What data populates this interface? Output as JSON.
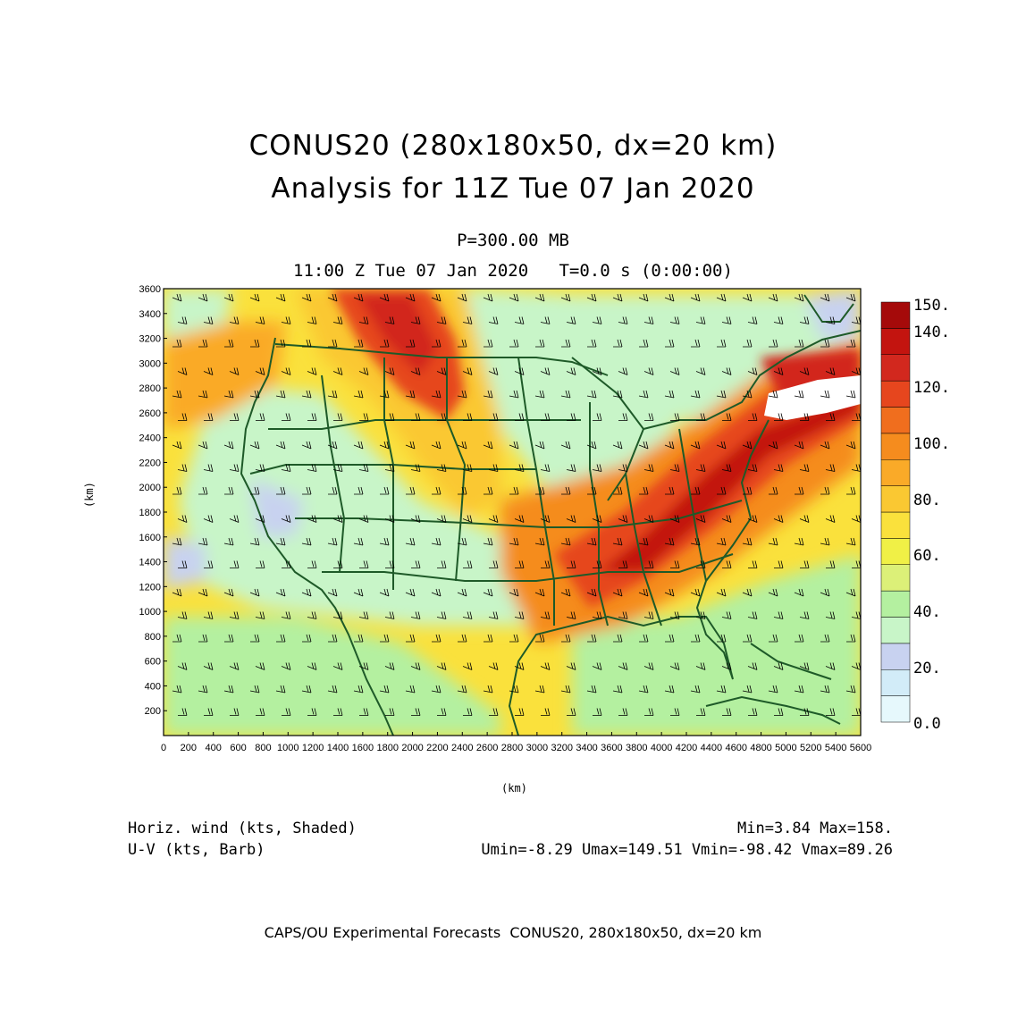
{
  "titles": {
    "line1": "CONUS20 (280x180x50, dx=20 km)",
    "line2": "Analysis for 11Z Tue 07 Jan 2020",
    "level": "P=300.00 MB",
    "time": "11:00 Z Tue 07 Jan 2020   T=0.0 s (0:00:00)"
  },
  "axes": {
    "xlabel": "(km)",
    "ylabel": "(km)",
    "xlim": [
      0,
      5600
    ],
    "ylim": [
      0,
      3600
    ],
    "xticks": [
      "0",
      "200",
      "400",
      "600",
      "800",
      "1000",
      "1200",
      "1400",
      "1600",
      "1800",
      "2000",
      "2200",
      "2400",
      "2600",
      "2800",
      "3000",
      "3200",
      "3400",
      "3600",
      "3800",
      "4000",
      "4200",
      "4400",
      "4600",
      "4800",
      "5000",
      "5200",
      "5400",
      "5600"
    ],
    "yticks": [
      "3600",
      "3400",
      "3200",
      "3000",
      "2800",
      "2600",
      "2400",
      "2200",
      "2000",
      "1800",
      "1600",
      "1400",
      "1200",
      "1000",
      "800",
      "600",
      "400",
      "200"
    ]
  },
  "colorbar": {
    "labels": [
      "150.",
      "140.",
      "120.",
      "100.",
      "80.",
      "60.",
      "40.",
      "20.",
      "0.0"
    ],
    "levels": [
      0,
      10,
      20,
      30,
      40,
      50,
      60,
      70,
      80,
      90,
      100,
      110,
      120,
      130,
      140,
      150
    ],
    "colors": [
      "#e6f8fc",
      "#d2ecf8",
      "#c8d2f0",
      "#c8f5c8",
      "#b4f0a0",
      "#dcf078",
      "#f0f046",
      "#fae13c",
      "#fac832",
      "#faaa28",
      "#f58c1e",
      "#f06e1e",
      "#e6461e",
      "#d2281e",
      "#c3140f",
      "#a50a0a"
    ]
  },
  "field": {
    "name": "Horiz. wind (kts, Shaded)",
    "barbs": "U-V (kts, Barb)",
    "stats": "Min=3.84 Max=158.",
    "uvstats": "Umin=-8.29 Umax=149.51 Vmin=-98.42 Vmax=89.26"
  },
  "map_colors": {
    "boundary": "#1e5a28",
    "barb": "#000000"
  },
  "footer": "CAPS/OU Experimental Forecasts  CONUS20, 280x180x50, dx=20 km"
}
